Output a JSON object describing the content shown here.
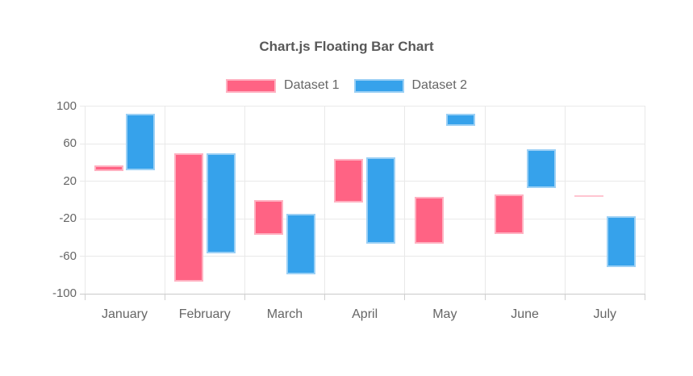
{
  "title": "Chart.js Floating Bar Chart",
  "chart_data": {
    "type": "bar",
    "subtype": "floating-bar",
    "title": "Chart.js Floating Bar Chart",
    "categories": [
      "January",
      "February",
      "March",
      "April",
      "May",
      "June",
      "July"
    ],
    "series": [
      {
        "name": "Dataset 1",
        "color": "#ff6384",
        "border_color": "#ffb1c1",
        "values": [
          [
            31,
            37
          ],
          [
            -87,
            50
          ],
          [
            -37,
            0
          ],
          [
            -3,
            44
          ],
          [
            -47,
            3
          ],
          [
            -36,
            6
          ],
          [
            4,
            5
          ]
        ]
      },
      {
        "name": "Dataset 2",
        "color": "#36a2eb",
        "border_color": "#9bd0f5",
        "values": [
          [
            32,
            92
          ],
          [
            -57,
            50
          ],
          [
            -79,
            -15
          ],
          [
            -47,
            45
          ],
          [
            79,
            92
          ],
          [
            13,
            54
          ],
          [
            -72,
            -17
          ]
        ]
      }
    ],
    "yticks": [
      100,
      60,
      20,
      -20,
      -60,
      -100
    ],
    "ylim": [
      -100,
      100
    ],
    "xlabel": "",
    "ylabel": "",
    "grid": true,
    "legend_position": "top",
    "axis_text_color": "#666666",
    "grid_color": "#e9e9e9",
    "axis_border_color": "#c9c9c9"
  }
}
